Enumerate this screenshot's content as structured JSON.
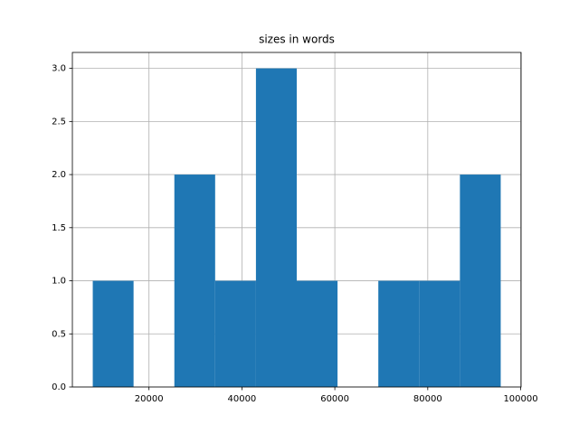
{
  "chart_data": {
    "type": "histogram",
    "title": "sizes in words",
    "bins": [
      7900,
      16680,
      25460,
      34240,
      43020,
      51800,
      60580,
      69360,
      78140,
      86920,
      95700
    ],
    "counts": [
      1,
      0,
      2,
      1,
      3,
      1,
      0,
      1,
      1,
      2
    ],
    "color": "#1f77b4",
    "grid": true,
    "xlim": [
      3510,
      100090
    ],
    "xticks": [
      20000,
      40000,
      60000,
      80000,
      100000
    ],
    "ylim": [
      0,
      3.15
    ],
    "yticks": [
      {
        "value": 0,
        "label": "0.0"
      },
      {
        "value": 0.5,
        "label": "0.5"
      },
      {
        "value": 1,
        "label": "1.0"
      },
      {
        "value": 1.5,
        "label": "1.5"
      },
      {
        "value": 2,
        "label": "2.0"
      },
      {
        "value": 2.5,
        "label": "2.5"
      },
      {
        "value": 3,
        "label": "3.0"
      }
    ]
  }
}
